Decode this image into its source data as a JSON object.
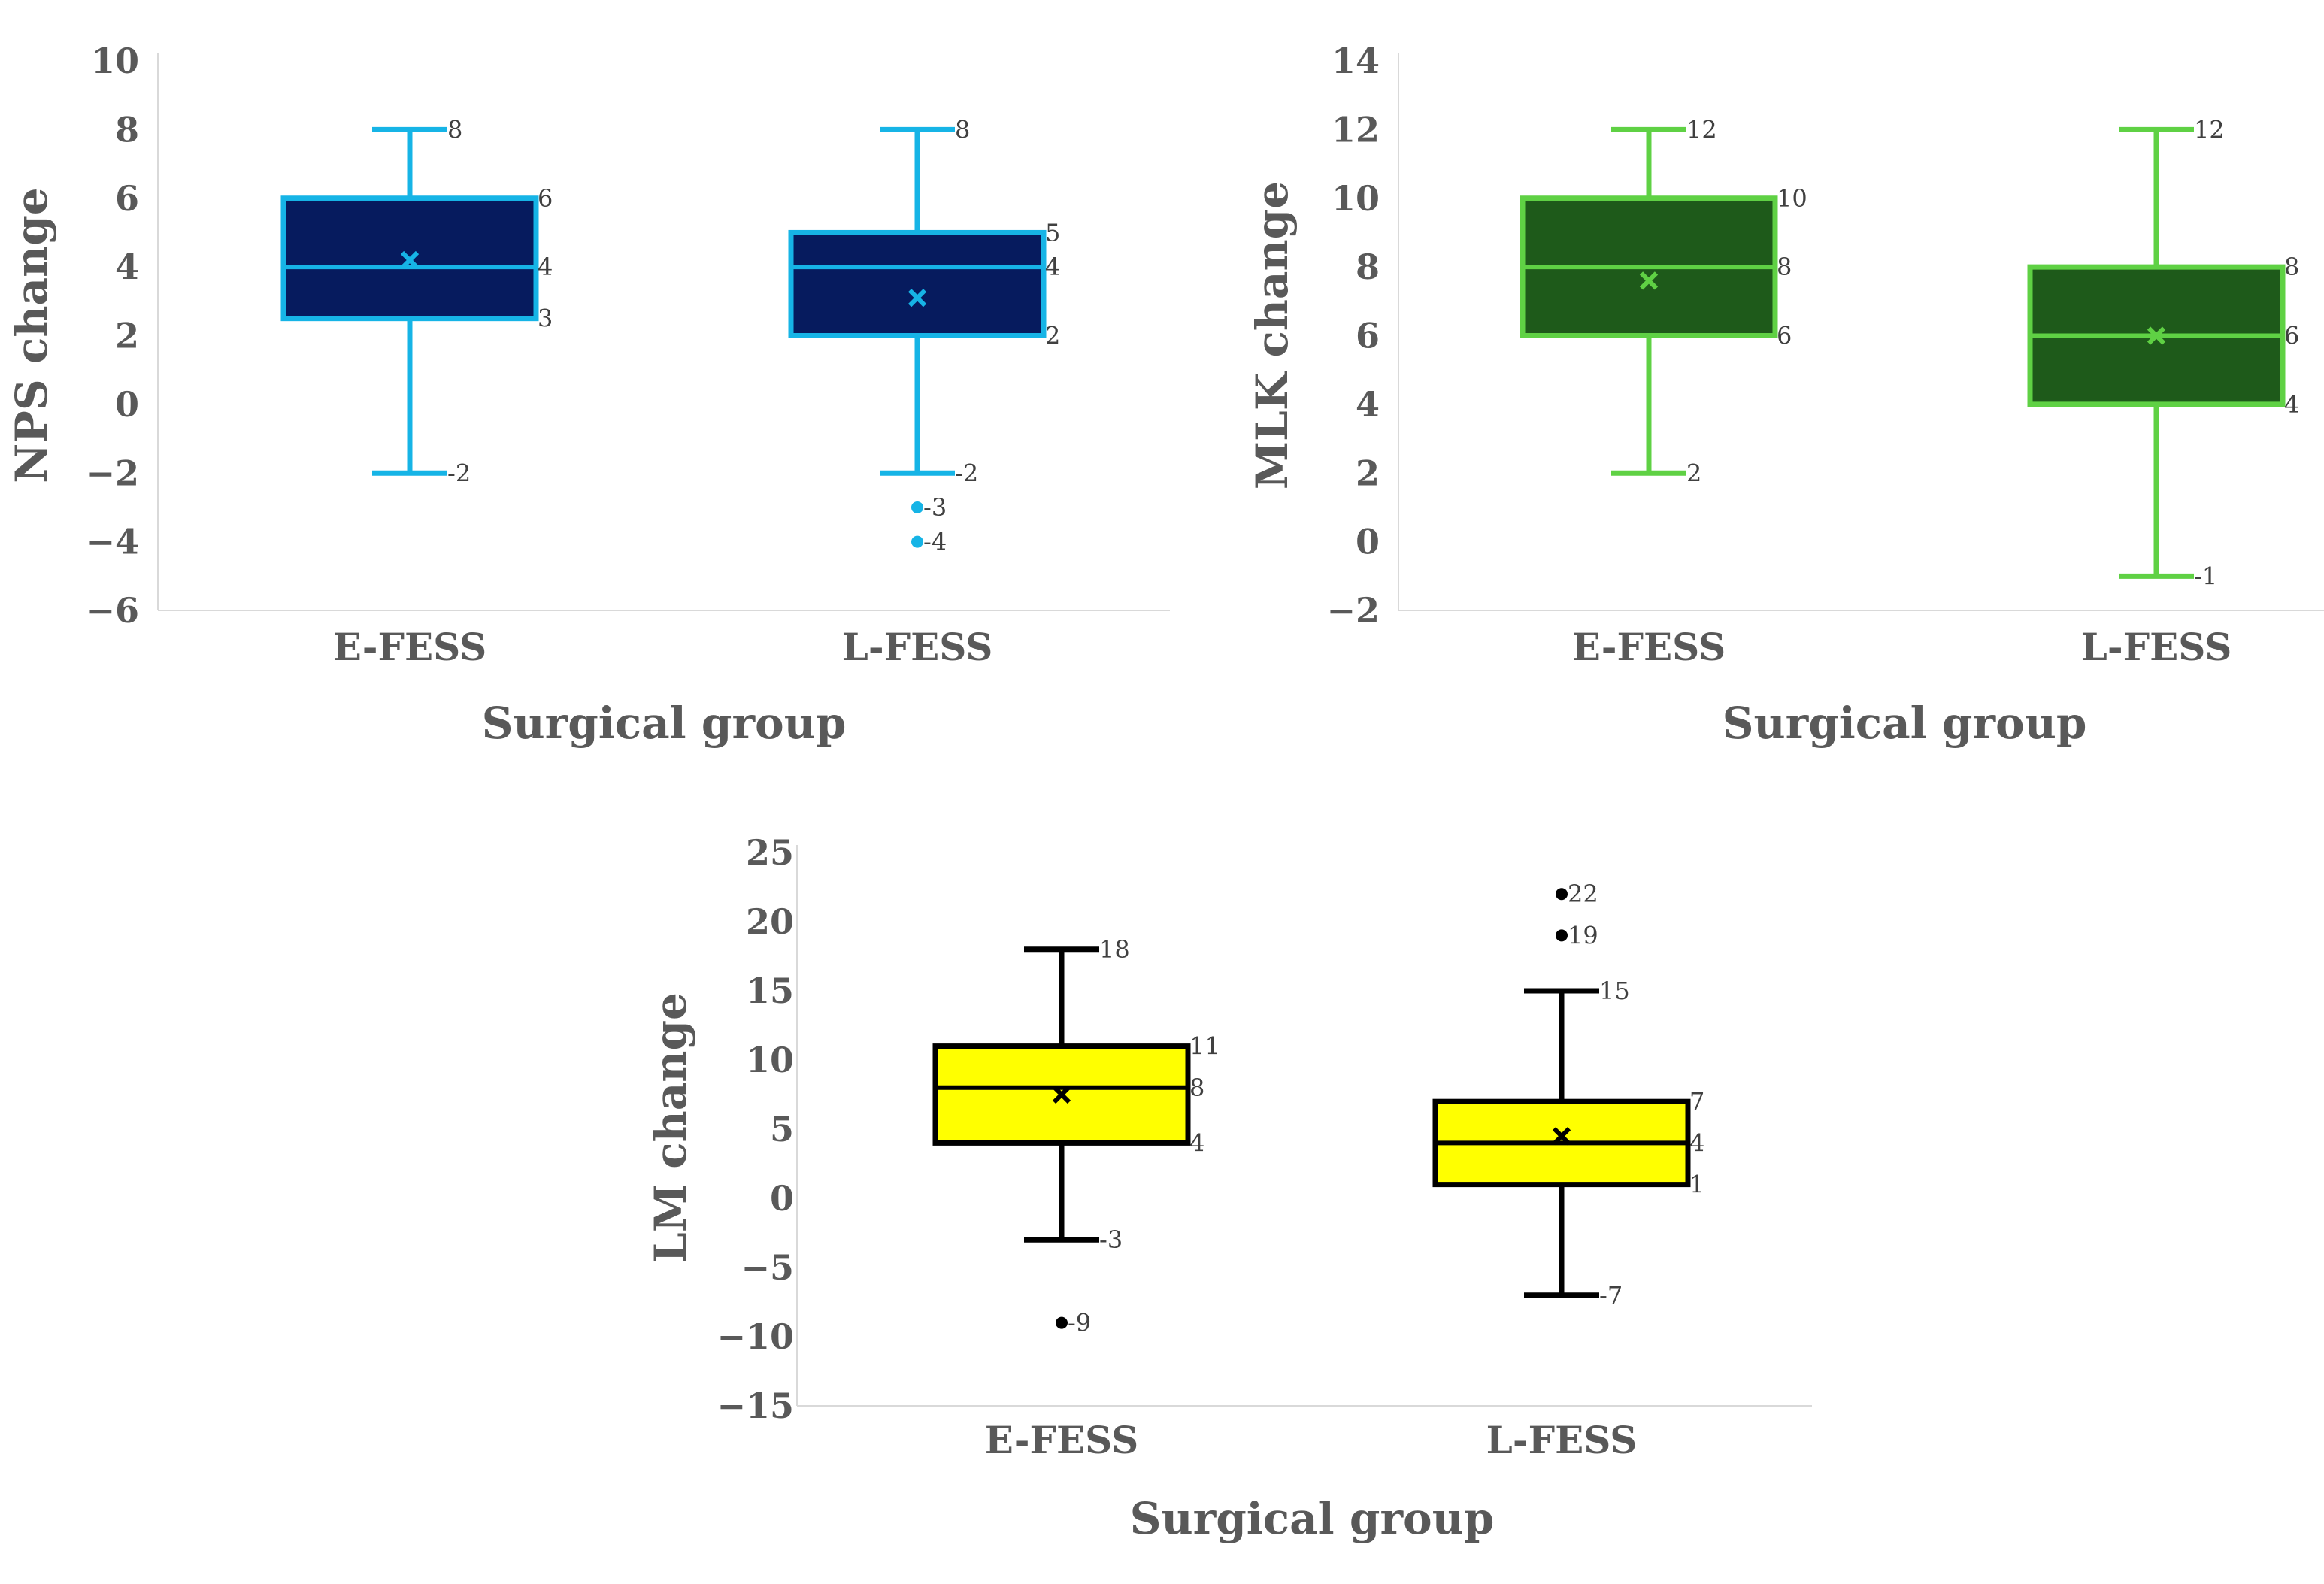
{
  "chart_data": [
    {
      "type": "box",
      "title": "",
      "xlabel": "Surgical group",
      "ylabel": "NPS change",
      "ylim": [
        -6,
        10
      ],
      "ytick_step": 2,
      "ytick_labels": [
        "−6",
        "−4",
        "−2",
        "0",
        "2",
        "4",
        "6",
        "8",
        "10"
      ],
      "categories": [
        "E-FESS",
        "L-FESS"
      ],
      "colors": {
        "line": "#16b4e6",
        "fill": "#061b5e"
      },
      "boxes": [
        {
          "category": "E-FESS",
          "min": -2,
          "q1": 2.5,
          "median": 4,
          "q3": 6,
          "max": 8,
          "mean": 4.2,
          "outliers": [],
          "labels": {
            "min": "-2",
            "q1": "3",
            "median": "4",
            "q3": "6",
            "max": "8"
          },
          "outlier_labels": []
        },
        {
          "category": "L-FESS",
          "min": -2,
          "q1": 2,
          "median": 4,
          "q3": 5,
          "max": 8,
          "mean": 3.1,
          "outliers": [
            -3,
            -4
          ],
          "labels": {
            "min": "-2",
            "q1": "2",
            "median": "4",
            "q3": "5",
            "max": "8"
          },
          "outlier_labels": [
            "-3",
            "-4"
          ]
        }
      ]
    },
    {
      "type": "box",
      "title": "",
      "xlabel": "Surgical group",
      "ylabel": "MLK change",
      "ylim": [
        -2,
        14
      ],
      "ytick_step": 2,
      "ytick_labels": [
        "−2",
        "0",
        "2",
        "4",
        "6",
        "8",
        "10",
        "12",
        "14"
      ],
      "categories": [
        "E-FESS",
        "L-FESS"
      ],
      "colors": {
        "line": "#5fd144",
        "fill": "#1e5a1a"
      },
      "boxes": [
        {
          "category": "E-FESS",
          "min": 2,
          "q1": 6,
          "median": 8,
          "q3": 10,
          "max": 12,
          "mean": 7.6,
          "outliers": [],
          "labels": {
            "min": "2",
            "q1": "6",
            "median": "8",
            "q3": "10",
            "max": "12"
          },
          "outlier_labels": []
        },
        {
          "category": "L-FESS",
          "min": -1,
          "q1": 4,
          "median": 6,
          "q3": 8,
          "max": 12,
          "mean": 6,
          "outliers": [],
          "labels": {
            "min": "-1",
            "q1": "4",
            "median": "6",
            "q3": "8",
            "max": "12"
          },
          "outlier_labels": []
        }
      ]
    },
    {
      "type": "box",
      "title": "",
      "xlabel": "Surgical group",
      "ylabel": "LM change",
      "ylim": [
        -15,
        25
      ],
      "ytick_step": 5,
      "ytick_labels": [
        "−15",
        "−10",
        "−5",
        "0",
        "5",
        "10",
        "15",
        "20",
        "25"
      ],
      "categories": [
        "E-FESS",
        "L-FESS"
      ],
      "colors": {
        "line": "#000000",
        "fill": "#ffff00"
      },
      "boxes": [
        {
          "category": "E-FESS",
          "min": -3,
          "q1": 4,
          "median": 8,
          "q3": 11,
          "max": 18,
          "mean": 7.5,
          "outliers": [
            -9
          ],
          "labels": {
            "min": "-3",
            "q1": "4",
            "median": "8",
            "q3": "11",
            "max": "18"
          },
          "outlier_labels": [
            "-9"
          ]
        },
        {
          "category": "L-FESS",
          "min": -7,
          "q1": 1,
          "median": 4,
          "q3": 7,
          "max": 15,
          "mean": 4.5,
          "outliers": [
            22,
            19
          ],
          "labels": {
            "min": "-7",
            "q1": "1",
            "median": "4",
            "q3": "7",
            "max": "15"
          },
          "outlier_labels": [
            "22",
            "19"
          ]
        }
      ]
    }
  ]
}
